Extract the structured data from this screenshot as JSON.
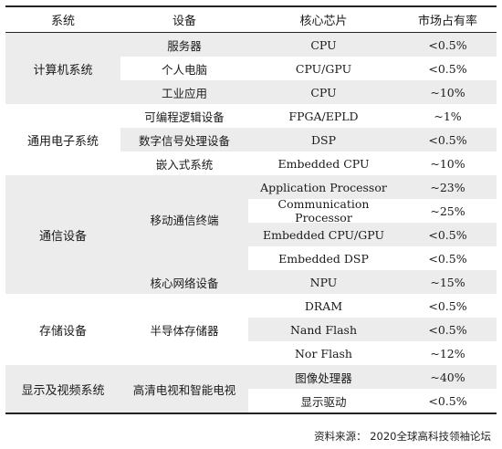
{
  "headers": {
    "system": "系统",
    "device": "设备",
    "chip": "核心芯片",
    "share": "市场占有率"
  },
  "groups": {
    "computer": {
      "name": "计算机系统",
      "rows": [
        {
          "device": "服务器",
          "chip": "CPU",
          "share": "<0.5%"
        },
        {
          "device": "个人电脑",
          "chip": "CPU/GPU",
          "share": "<0.5%"
        },
        {
          "device": "工业应用",
          "chip": "CPU",
          "share": "~10%"
        }
      ]
    },
    "general": {
      "name": "通用电子系统",
      "rows": [
        {
          "device": "可编程逻辑设备",
          "chip": "FPGA/EPLD",
          "share": "~1%"
        },
        {
          "device": "数字信号处理设备",
          "chip": "DSP",
          "share": "<0.5%"
        },
        {
          "device": "嵌入式系统",
          "chip": "Embedded CPU",
          "share": "~10%"
        }
      ]
    },
    "comm": {
      "name": "通信设备",
      "mobile_device": "移动通信终端",
      "network_device": "核心网络设备",
      "rows": [
        {
          "chip": "Application Processor",
          "share": "~23%"
        },
        {
          "chip": "Communication Processor",
          "share": "~25%"
        },
        {
          "chip": "Embedded CPU/GPU",
          "share": "<0.5%"
        },
        {
          "chip": "Embedded DSP",
          "share": "<0.5%"
        },
        {
          "chip": "NPU",
          "share": "~15%"
        }
      ]
    },
    "storage": {
      "name": "存储设备",
      "device": "半导体存储器",
      "rows": [
        {
          "chip": "DRAM",
          "share": "<0.5%"
        },
        {
          "chip": "Nand Flash",
          "share": "<0.5%"
        },
        {
          "chip": "Nor Flash",
          "share": "~12%"
        }
      ]
    },
    "display": {
      "name": "显示及视频系统",
      "device": "高清电视和智能电视",
      "rows": [
        {
          "chip": "图像处理器",
          "share": "~40%"
        },
        {
          "chip": "显示驱动",
          "share": "<0.5%"
        }
      ]
    }
  },
  "source": "资料来源： 2020全球高科技领袖论坛"
}
